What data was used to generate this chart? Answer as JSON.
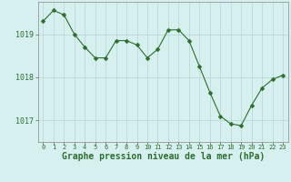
{
  "x": [
    0,
    1,
    2,
    3,
    4,
    5,
    6,
    7,
    8,
    9,
    10,
    11,
    12,
    13,
    14,
    15,
    16,
    17,
    18,
    19,
    20,
    21,
    22,
    23
  ],
  "y": [
    1019.3,
    1019.55,
    1019.45,
    1019.0,
    1018.7,
    1018.45,
    1018.45,
    1018.85,
    1018.85,
    1018.75,
    1018.45,
    1018.65,
    1019.1,
    1019.1,
    1018.85,
    1018.25,
    1017.65,
    1017.1,
    1016.92,
    1016.88,
    1017.35,
    1017.75,
    1017.95,
    1018.05
  ],
  "line_color": "#2d6e2d",
  "marker": "D",
  "marker_size": 2.5,
  "bg_color": "#d6f0f0",
  "grid_color": "#b8d4d4",
  "spine_color": "#888888",
  "xlabel": "Graphe pression niveau de la mer (hPa)",
  "xlabel_fontsize": 7,
  "yticks": [
    1017,
    1018,
    1019
  ],
  "ylim": [
    1016.5,
    1019.75
  ],
  "xlim": [
    -0.5,
    23.5
  ],
  "xtick_fontsize": 5.0,
  "ytick_fontsize": 6.0,
  "tick_color": "#2d6e2d",
  "font_family": "monospace"
}
